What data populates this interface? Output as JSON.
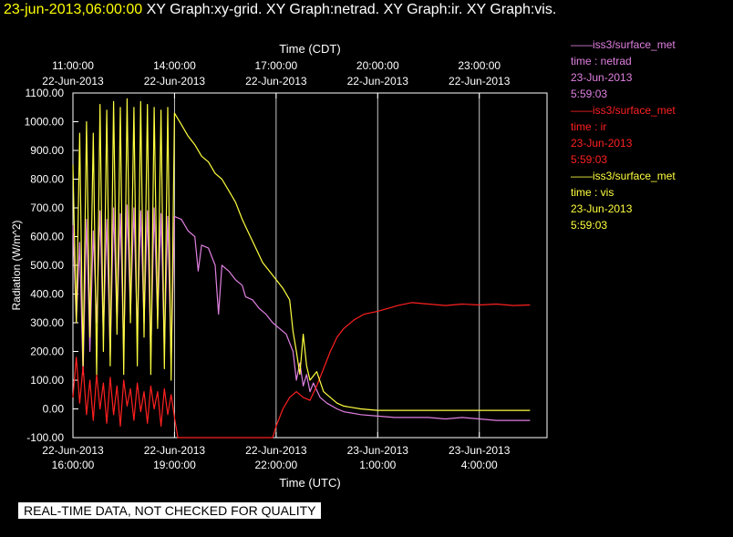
{
  "header": {
    "timestamp": "23-jun-2013,06:00:00",
    "graphs": "XY Graph:xy-grid.  XY Graph:netrad.  XY Graph:ir.  XY Graph:vis."
  },
  "notice": "REAL-TIME DATA, NOT CHECKED FOR QUALITY",
  "legend": [
    {
      "source": "iss3/surface_met",
      "var": "time : netrad",
      "date": "23-Jun-2013",
      "time": "5:59:03",
      "color": "#e080e0"
    },
    {
      "source": "iss3/surface_met",
      "var": "time : ir",
      "date": "23-Jun-2013",
      "time": "5:59:03",
      "color": "#ff2020"
    },
    {
      "source": "iss3/surface_met",
      "var": "time : vis",
      "date": "23-Jun-2013",
      "time": "5:59:03",
      "color": "#ffff40"
    }
  ],
  "chart_data": {
    "type": "line",
    "title": "",
    "xlabel": "Time (UTC)",
    "xlabel_top": "Time (CDT)",
    "ylabel": "Radiation (W/m^2)",
    "x_unit": "hours since 22-Jun-2013 16:00 UTC",
    "xlim": [
      0,
      14
    ],
    "ylim": [
      -100,
      1100
    ],
    "yticks": [
      {
        "v": 1100,
        "label": "1100.00"
      },
      {
        "v": 1000,
        "label": "1000.00"
      },
      {
        "v": 900,
        "label": "900.00"
      },
      {
        "v": 800,
        "label": "800.00"
      },
      {
        "v": 700,
        "label": "700.00"
      },
      {
        "v": 600,
        "label": "600.00"
      },
      {
        "v": 500,
        "label": "500.00"
      },
      {
        "v": 400,
        "label": "400.00"
      },
      {
        "v": 300,
        "label": "300.00"
      },
      {
        "v": 200,
        "label": "200.00"
      },
      {
        "v": 100,
        "label": "100.00"
      },
      {
        "v": 0,
        "label": "0.00"
      },
      {
        "v": -100,
        "label": "-100.00"
      }
    ],
    "xticks_bottom": [
      {
        "v": 0,
        "date": "22-Jun-2013",
        "time": "16:00:00"
      },
      {
        "v": 3,
        "date": "22-Jun-2013",
        "time": "19:00:00"
      },
      {
        "v": 6,
        "date": "22-Jun-2013",
        "time": "22:00:00"
      },
      {
        "v": 9,
        "date": "23-Jun-2013",
        "time": "1:00:00"
      },
      {
        "v": 12,
        "date": "23-Jun-2013",
        "time": "4:00:00"
      }
    ],
    "xticks_top": [
      {
        "v": 0,
        "time": "11:00:00",
        "date": "22-Jun-2013"
      },
      {
        "v": 3,
        "time": "14:00:00",
        "date": "22-Jun-2013"
      },
      {
        "v": 6,
        "time": "17:00:00",
        "date": "22-Jun-2013"
      },
      {
        "v": 9,
        "time": "20:00:00",
        "date": "22-Jun-2013"
      },
      {
        "v": 12,
        "time": "23:00:00",
        "date": "22-Jun-2013"
      }
    ],
    "grid": true,
    "series": [
      {
        "name": "netrad",
        "color": "#e080e0",
        "points": [
          [
            0,
            640
          ],
          [
            0.1,
            300
          ],
          [
            0.2,
            580
          ],
          [
            0.3,
            120
          ],
          [
            0.4,
            660
          ],
          [
            0.5,
            200
          ],
          [
            0.6,
            620
          ],
          [
            0.7,
            300
          ],
          [
            0.8,
            690
          ],
          [
            0.9,
            250
          ],
          [
            1.0,
            660
          ],
          [
            1.1,
            180
          ],
          [
            1.2,
            700
          ],
          [
            1.3,
            300
          ],
          [
            1.4,
            680
          ],
          [
            1.5,
            200
          ],
          [
            1.6,
            710
          ],
          [
            1.7,
            330
          ],
          [
            1.8,
            700
          ],
          [
            1.9,
            260
          ],
          [
            2.0,
            690
          ],
          [
            2.1,
            300
          ],
          [
            2.2,
            690
          ],
          [
            2.3,
            180
          ],
          [
            2.4,
            700
          ],
          [
            2.5,
            310
          ],
          [
            2.6,
            680
          ],
          [
            2.7,
            200
          ],
          [
            2.8,
            670
          ],
          [
            2.9,
            160
          ],
          [
            3.0,
            670
          ],
          [
            3.2,
            660
          ],
          [
            3.4,
            620
          ],
          [
            3.6,
            600
          ],
          [
            3.7,
            480
          ],
          [
            3.8,
            570
          ],
          [
            4.0,
            560
          ],
          [
            4.2,
            500
          ],
          [
            4.3,
            330
          ],
          [
            4.4,
            500
          ],
          [
            4.6,
            480
          ],
          [
            4.8,
            450
          ],
          [
            5.0,
            430
          ],
          [
            5.1,
            390
          ],
          [
            5.3,
            380
          ],
          [
            5.5,
            350
          ],
          [
            5.7,
            330
          ],
          [
            5.9,
            300
          ],
          [
            6.1,
            280
          ],
          [
            6.3,
            260
          ],
          [
            6.5,
            200
          ],
          [
            6.6,
            100
          ],
          [
            6.7,
            160
          ],
          [
            6.8,
            80
          ],
          [
            6.9,
            120
          ],
          [
            7.0,
            60
          ],
          [
            7.1,
            90
          ],
          [
            7.3,
            40
          ],
          [
            7.5,
            20
          ],
          [
            7.8,
            0
          ],
          [
            8.0,
            -10
          ],
          [
            8.5,
            -20
          ],
          [
            9.0,
            -25
          ],
          [
            9.5,
            -30
          ],
          [
            10,
            -30
          ],
          [
            10.5,
            -30
          ],
          [
            11,
            -35
          ],
          [
            11.5,
            -30
          ],
          [
            12,
            -35
          ],
          [
            12.5,
            -40
          ],
          [
            13,
            -40
          ],
          [
            13.5,
            -40
          ]
        ]
      },
      {
        "name": "ir",
        "color": "#ff2020",
        "points": [
          [
            0,
            40
          ],
          [
            0.1,
            180
          ],
          [
            0.2,
            20
          ],
          [
            0.3,
            150
          ],
          [
            0.4,
            -20
          ],
          [
            0.5,
            100
          ],
          [
            0.6,
            -40
          ],
          [
            0.7,
            120
          ],
          [
            0.8,
            0
          ],
          [
            0.9,
            90
          ],
          [
            1.0,
            -50
          ],
          [
            1.1,
            110
          ],
          [
            1.2,
            -20
          ],
          [
            1.3,
            80
          ],
          [
            1.4,
            -60
          ],
          [
            1.5,
            100
          ],
          [
            1.6,
            10
          ],
          [
            1.7,
            70
          ],
          [
            1.8,
            -40
          ],
          [
            1.9,
            90
          ],
          [
            2.0,
            -10
          ],
          [
            2.1,
            60
          ],
          [
            2.2,
            -50
          ],
          [
            2.3,
            80
          ],
          [
            2.4,
            0
          ],
          [
            2.5,
            60
          ],
          [
            2.6,
            -60
          ],
          [
            2.7,
            70
          ],
          [
            2.8,
            -20
          ],
          [
            2.9,
            50
          ],
          [
            3.0,
            -30
          ],
          [
            3.1,
            -100
          ],
          [
            3.3,
            -100
          ],
          [
            4.0,
            -100
          ],
          [
            5.0,
            -100
          ],
          [
            5.9,
            -100
          ],
          [
            6.0,
            -60
          ],
          [
            6.2,
            0
          ],
          [
            6.4,
            40
          ],
          [
            6.6,
            60
          ],
          [
            6.8,
            40
          ],
          [
            7.0,
            30
          ],
          [
            7.2,
            80
          ],
          [
            7.4,
            140
          ],
          [
            7.6,
            200
          ],
          [
            7.8,
            250
          ],
          [
            8.0,
            280
          ],
          [
            8.3,
            310
          ],
          [
            8.6,
            330
          ],
          [
            9.0,
            340
          ],
          [
            9.3,
            350
          ],
          [
            9.6,
            360
          ],
          [
            10,
            370
          ],
          [
            10.5,
            365
          ],
          [
            11,
            360
          ],
          [
            11.5,
            365
          ],
          [
            12,
            362
          ],
          [
            12.5,
            365
          ],
          [
            13,
            360
          ],
          [
            13.5,
            362
          ]
        ]
      },
      {
        "name": "vis",
        "color": "#ffff40",
        "points": [
          [
            0,
            850
          ],
          [
            0.1,
            300
          ],
          [
            0.2,
            960
          ],
          [
            0.3,
            150
          ],
          [
            0.4,
            1000
          ],
          [
            0.5,
            250
          ],
          [
            0.6,
            960
          ],
          [
            0.7,
            120
          ],
          [
            0.8,
            1060
          ],
          [
            0.9,
            200
          ],
          [
            1.0,
            1040
          ],
          [
            1.1,
            150
          ],
          [
            1.2,
            1070
          ],
          [
            1.3,
            260
          ],
          [
            1.4,
            1050
          ],
          [
            1.5,
            120
          ],
          [
            1.6,
            1080
          ],
          [
            1.7,
            300
          ],
          [
            1.8,
            1050
          ],
          [
            1.9,
            150
          ],
          [
            2.0,
            1070
          ],
          [
            2.1,
            250
          ],
          [
            2.2,
            1060
          ],
          [
            2.3,
            120
          ],
          [
            2.4,
            1050
          ],
          [
            2.5,
            280
          ],
          [
            2.6,
            1040
          ],
          [
            2.7,
            140
          ],
          [
            2.8,
            1050
          ],
          [
            2.9,
            100
          ],
          [
            3.0,
            1030
          ],
          [
            3.2,
            990
          ],
          [
            3.4,
            950
          ],
          [
            3.6,
            920
          ],
          [
            3.8,
            880
          ],
          [
            4.0,
            860
          ],
          [
            4.2,
            820
          ],
          [
            4.4,
            800
          ],
          [
            4.6,
            760
          ],
          [
            4.8,
            720
          ],
          [
            5.0,
            660
          ],
          [
            5.2,
            610
          ],
          [
            5.4,
            560
          ],
          [
            5.6,
            510
          ],
          [
            5.8,
            480
          ],
          [
            6.0,
            450
          ],
          [
            6.2,
            420
          ],
          [
            6.4,
            380
          ],
          [
            6.5,
            270
          ],
          [
            6.6,
            200
          ],
          [
            6.7,
            120
          ],
          [
            6.8,
            260
          ],
          [
            6.9,
            150
          ],
          [
            7.0,
            100
          ],
          [
            7.2,
            130
          ],
          [
            7.4,
            60
          ],
          [
            7.6,
            40
          ],
          [
            7.8,
            20
          ],
          [
            8.0,
            10
          ],
          [
            8.5,
            0
          ],
          [
            9.0,
            -5
          ],
          [
            9.5,
            -5
          ],
          [
            10,
            -5
          ],
          [
            10.5,
            -5
          ],
          [
            11,
            -5
          ],
          [
            11.5,
            -5
          ],
          [
            12,
            -5
          ],
          [
            12.5,
            -5
          ],
          [
            13,
            -5
          ],
          [
            13.5,
            -5
          ]
        ]
      }
    ]
  }
}
